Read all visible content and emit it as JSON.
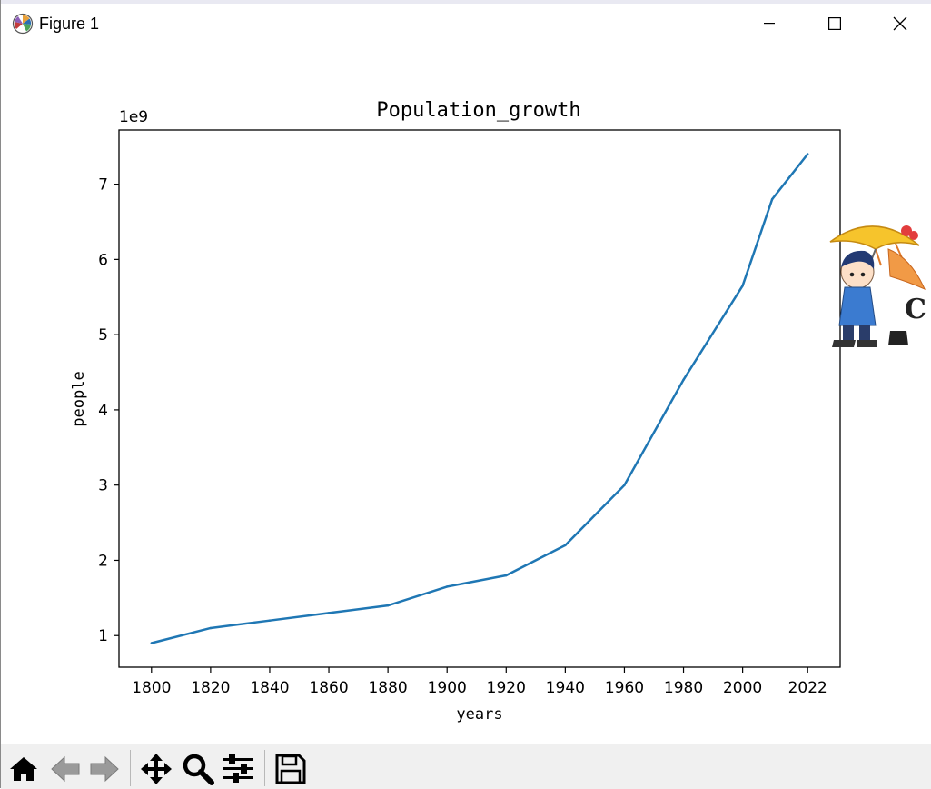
{
  "window": {
    "title": "Figure 1",
    "icon": "matplotlib-logo-icon",
    "controls": [
      "minimize-icon",
      "maximize-icon",
      "close-icon"
    ]
  },
  "toolbar": {
    "buttons": [
      {
        "name": "home-button",
        "icon": "home-icon"
      },
      {
        "name": "back-button",
        "icon": "arrow-left-icon"
      },
      {
        "name": "forward-button",
        "icon": "arrow-right-icon"
      },
      {
        "name": "pan-button",
        "icon": "move-icon"
      },
      {
        "name": "zoom-button",
        "icon": "magnifier-icon"
      },
      {
        "name": "configure-subplots-button",
        "icon": "sliders-icon"
      },
      {
        "name": "save-button",
        "icon": "floppy-disk-icon"
      }
    ]
  },
  "overlay": {
    "icon": "anime-character-umbrella-sticker-icon"
  },
  "chart_data": {
    "type": "line",
    "title": "Population_growth",
    "xlabel": "years",
    "ylabel": "people",
    "offset_label": "1e9",
    "x": [
      1800,
      1820,
      1840,
      1860,
      1880,
      1900,
      1920,
      1940,
      1960,
      1980,
      2000,
      2010,
      2022
    ],
    "series": [
      {
        "values": [
          900000000.0,
          1100000000.0,
          1200000000.0,
          1300000000.0,
          1400000000.0,
          1650000000.0,
          1800000000.0,
          2200000000.0,
          3000000000.0,
          4400000000.0,
          5650000000.0,
          6800000000.0,
          7400000000.0
        ],
        "color": "#1f77b4"
      }
    ],
    "xticks": [
      1800,
      1820,
      1840,
      1860,
      1880,
      1900,
      1920,
      1940,
      1960,
      1980,
      2000,
      2022
    ],
    "xtick_labels": [
      "1800",
      "1820",
      "1840",
      "1860",
      "1880",
      "1900",
      "1920",
      "1940",
      "1960",
      "1980",
      "2000",
      "2022"
    ],
    "yticks": [
      1,
      2,
      3,
      4,
      5,
      6,
      7
    ],
    "ytick_labels": [
      "1",
      "2",
      "3",
      "4",
      "5",
      "6",
      "7"
    ],
    "xlim": [
      1789,
      2033
    ],
    "ylim": [
      0.58,
      7.72
    ],
    "grid": false,
    "legend": "none"
  }
}
